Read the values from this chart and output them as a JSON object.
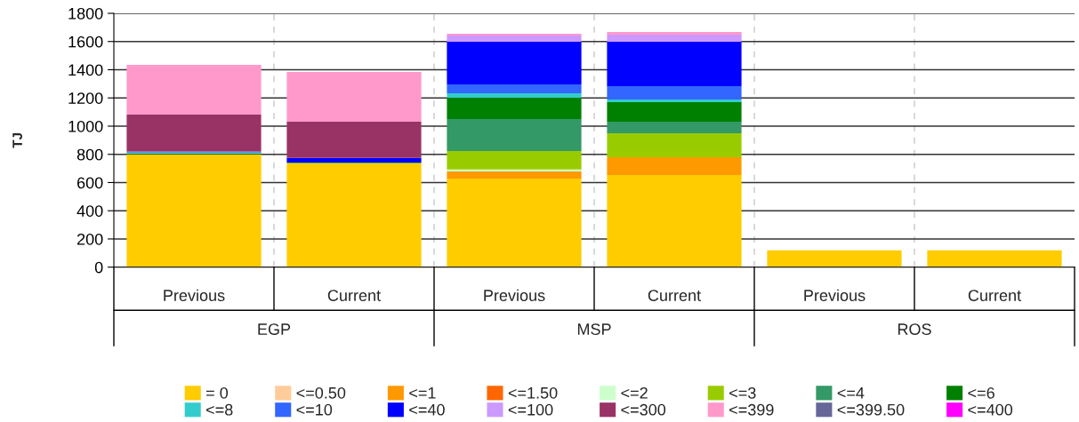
{
  "chart_data": {
    "type": "bar",
    "stacked": true,
    "ylabel": "TJ",
    "categories": [
      "Previous",
      "Current",
      "Previous",
      "Current",
      "Previous",
      "Current"
    ],
    "annotations": [
      "EGP",
      "MSP",
      "ROS"
    ],
    "ylim": [
      0,
      1800
    ],
    "yticks": [
      0,
      200,
      400,
      600,
      800,
      1000,
      1200,
      1400,
      1600,
      1800
    ],
    "grid": true,
    "legend": "bottom",
    "series": [
      {
        "name": "= 0",
        "color": "#ffcc00",
        "values": [
          800,
          738,
          628,
          653,
          120,
          120
        ]
      },
      {
        "name": "<=0.50",
        "color": "#ffcc99",
        "values": [
          null,
          null,
          null,
          null,
          null,
          null
        ]
      },
      {
        "name": "<=1",
        "color": "#ff9900",
        "values": [
          null,
          null,
          50,
          126,
          null,
          null
        ]
      },
      {
        "name": "<=1.50",
        "color": "#ff6600",
        "values": [
          null,
          null,
          null,
          null,
          null,
          null
        ]
      },
      {
        "name": "<=2",
        "color": "#ccffcc",
        "values": [
          null,
          null,
          15,
          null,
          null,
          null
        ]
      },
      {
        "name": "<=3",
        "color": "#99cc00",
        "values": [
          null,
          null,
          130,
          170,
          null,
          null
        ]
      },
      {
        "name": "<=4",
        "color": "#339966",
        "values": [
          null,
          null,
          227,
          82,
          null,
          null
        ]
      },
      {
        "name": "<=6",
        "color": "#008000",
        "values": [
          6,
          4,
          151,
          139,
          null,
          null
        ]
      },
      {
        "name": "<=8",
        "color": "#33cccc",
        "values": [
          6,
          null,
          32,
          19,
          null,
          null
        ]
      },
      {
        "name": "<=10",
        "color": "#3366ff",
        "values": [
          8,
          null,
          63,
          94,
          null,
          null
        ]
      },
      {
        "name": "<=40",
        "color": "#0000ff",
        "values": [
          null,
          33,
          302,
          315,
          null,
          null
        ]
      },
      {
        "name": "<=100",
        "color": "#cc99ff",
        "values": [
          null,
          null,
          45,
          51,
          null,
          null
        ]
      },
      {
        "name": "<=300",
        "color": "#993366",
        "values": [
          262,
          256,
          null,
          null,
          null,
          null
        ]
      },
      {
        "name": "<=399",
        "color": "#ff99cc",
        "values": [
          352,
          353,
          12,
          19,
          null,
          null
        ]
      },
      {
        "name": "<=399.50",
        "color": "#666699",
        "values": [
          null,
          null,
          null,
          null,
          null,
          null
        ]
      },
      {
        "name": "<=400",
        "color": "#ff00ff",
        "values": [
          null,
          null,
          null,
          null,
          null,
          null
        ]
      }
    ]
  }
}
